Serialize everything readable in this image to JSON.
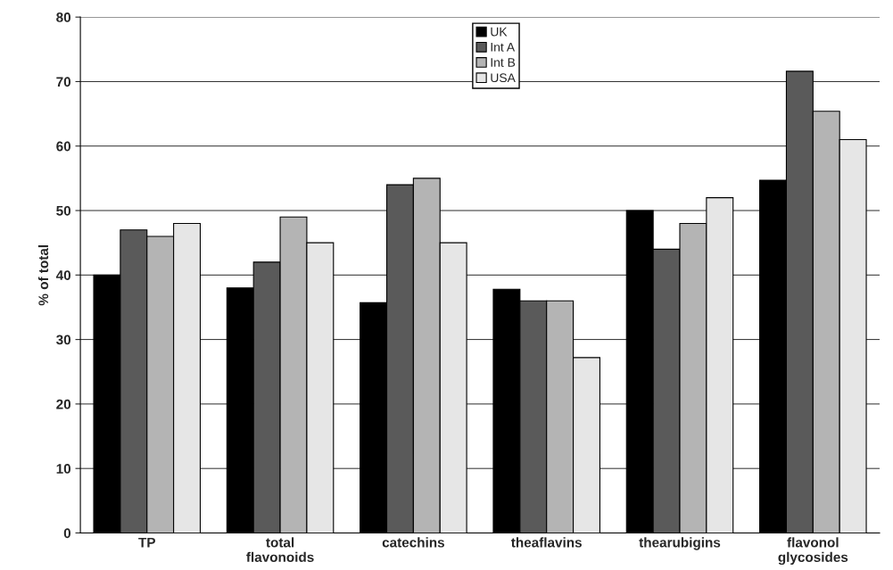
{
  "chart_data": {
    "type": "bar",
    "ylabel": "% of total",
    "categories": [
      "TP",
      "total\nflavonoids",
      "catechins",
      "theaflavins",
      "thearubigins",
      "flavonol\nglycosides"
    ],
    "series": [
      {
        "name": "UK",
        "color": "#000000",
        "values": [
          40,
          38,
          35.7,
          37.8,
          50,
          54.7
        ]
      },
      {
        "name": "Int A",
        "color": "#5a5a5a",
        "values": [
          47,
          42,
          54,
          36,
          44,
          71.6
        ]
      },
      {
        "name": "Int B",
        "color": "#b4b4b4",
        "values": [
          46,
          49,
          55,
          36,
          48,
          65.4
        ]
      },
      {
        "name": "USA",
        "color": "#e6e6e6",
        "values": [
          48,
          45,
          45,
          27.2,
          52,
          61
        ]
      }
    ],
    "ylim": [
      0,
      80
    ],
    "yticks": [
      0,
      10,
      20,
      30,
      40,
      50,
      60,
      70,
      80
    ],
    "grid": "y",
    "legend": "top"
  }
}
